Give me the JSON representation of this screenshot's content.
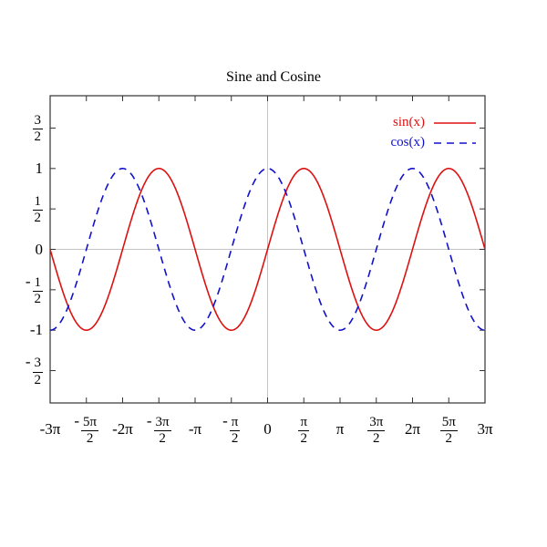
{
  "chart_data": {
    "type": "line",
    "title": "Sine and Cosine",
    "xlabel": "",
    "ylabel": "",
    "xlim_pi": [
      -3,
      3
    ],
    "ylim": [
      -1.9,
      1.9
    ],
    "grid": false,
    "zero_axes": true,
    "zero_axis_color": "#c4c4c4",
    "border_color": "#333333",
    "legend_position": "top-right",
    "x_ticks": [
      {
        "value_pi": -3,
        "label": "-3π"
      },
      {
        "value_pi": -2.5,
        "label": "-5π/2"
      },
      {
        "value_pi": -2,
        "label": "-2π"
      },
      {
        "value_pi": -1.5,
        "label": "-3π/2"
      },
      {
        "value_pi": -1,
        "label": "-π"
      },
      {
        "value_pi": -0.5,
        "label": "-π/2"
      },
      {
        "value_pi": 0,
        "label": "0"
      },
      {
        "value_pi": 0.5,
        "label": "π/2"
      },
      {
        "value_pi": 1,
        "label": "π"
      },
      {
        "value_pi": 1.5,
        "label": "3π/2"
      },
      {
        "value_pi": 2,
        "label": "2π"
      },
      {
        "value_pi": 2.5,
        "label": "5π/2"
      },
      {
        "value_pi": 3,
        "label": "3π"
      }
    ],
    "y_ticks": [
      {
        "value": 1.5,
        "label": "3/2"
      },
      {
        "value": 1,
        "label": "1"
      },
      {
        "value": 0.5,
        "label": "1/2"
      },
      {
        "value": 0,
        "label": "0"
      },
      {
        "value": -0.5,
        "label": "-1/2"
      },
      {
        "value": -1,
        "label": "-1"
      },
      {
        "value": -1.5,
        "label": "-3/2"
      }
    ],
    "series": [
      {
        "name": "sin(x)",
        "fn": "sin",
        "amplitude": 1,
        "color": "#dd1111",
        "dash": ""
      },
      {
        "name": "cos(x)",
        "fn": "cos",
        "amplitude": 1,
        "color": "#1111cc",
        "dash": "8,6"
      }
    ]
  }
}
